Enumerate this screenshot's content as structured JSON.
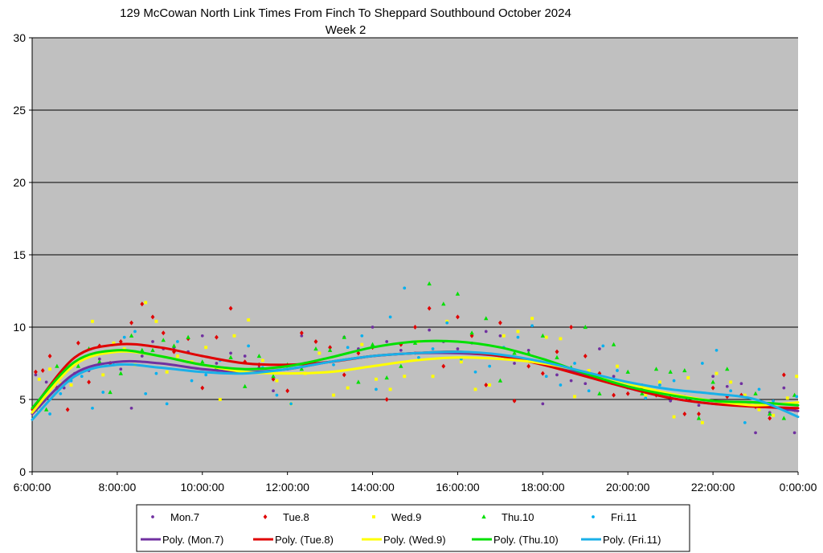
{
  "chart_data": {
    "type": "scatter",
    "title": "129 McCowan North Link Times From Finch To Sheppard Southbound October 2024",
    "subtitle": "Week 2",
    "xlabel": "",
    "ylabel": "",
    "x_range": [
      "6:00:00",
      "0:00:00"
    ],
    "ylim": [
      0,
      30
    ],
    "y_ticks": [
      "0",
      "5",
      "10",
      "15",
      "20",
      "25",
      "30"
    ],
    "x_ticks": [
      "6:00:00",
      "8:00:00",
      "10:00:00",
      "12:00:00",
      "14:00:00",
      "16:00:00",
      "18:00:00",
      "20:00:00",
      "22:00:00",
      "0:00:00"
    ],
    "grid": "horizontal",
    "plot_background": "#c0c0c0",
    "legend_position": "bottom",
    "series": [
      {
        "name": "Mon.7",
        "color": "#7030a0",
        "marker": "circle",
        "x": [
          "6:05",
          "6:20",
          "6:30",
          "6:45",
          "7:00",
          "7:10",
          "7:20",
          "7:35",
          "7:50",
          "8:05",
          "8:20",
          "8:35",
          "8:50",
          "9:05",
          "9:20",
          "9:40",
          "10:00",
          "10:20",
          "10:40",
          "11:00",
          "11:20",
          "11:40",
          "12:00",
          "12:20",
          "12:40",
          "13:00",
          "13:20",
          "13:40",
          "14:00",
          "14:20",
          "14:40",
          "15:00",
          "15:20",
          "15:40",
          "16:00",
          "16:20",
          "16:40",
          "17:00",
          "17:20",
          "17:40",
          "18:00",
          "18:20",
          "18:40",
          "19:00",
          "19:20",
          "19:40",
          "20:00",
          "20:20",
          "20:40",
          "21:00",
          "21:20",
          "21:40",
          "22:00",
          "22:20",
          "22:40",
          "23:00",
          "23:20",
          "23:40",
          "23:55"
        ],
        "y": [
          6.7,
          6.2,
          6.0,
          5.8,
          6.8,
          6.9,
          7.0,
          7.8,
          7.5,
          7.1,
          4.4,
          8.0,
          9.0,
          8.5,
          8.6,
          8.3,
          9.4,
          7.5,
          8.2,
          8.0,
          7.2,
          5.6,
          7.1,
          9.4,
          9.0,
          8.6,
          9.3,
          8.5,
          10.0,
          9.0,
          8.4,
          8.2,
          9.8,
          9.0,
          8.5,
          8.9,
          9.7,
          9.4,
          7.5,
          8.4,
          4.7,
          6.7,
          6.3,
          6.1,
          8.5,
          6.6,
          5.8,
          6.0,
          5.6,
          4.9,
          5.2,
          4.6,
          6.6,
          5.9,
          6.1,
          2.7,
          4.1,
          5.8,
          2.7
        ]
      },
      {
        "name": "Tue.8",
        "color": "#e00000",
        "marker": "diamond",
        "x": [
          "6:05",
          "6:15",
          "6:25",
          "6:35",
          "6:50",
          "7:05",
          "7:20",
          "7:35",
          "7:50",
          "8:05",
          "8:20",
          "8:35",
          "8:50",
          "9:05",
          "9:20",
          "9:40",
          "10:00",
          "10:20",
          "10:40",
          "11:00",
          "11:20",
          "11:40",
          "12:00",
          "12:20",
          "12:40",
          "13:00",
          "13:20",
          "13:40",
          "14:00",
          "14:20",
          "14:40",
          "15:00",
          "15:20",
          "15:40",
          "16:00",
          "16:20",
          "16:40",
          "17:00",
          "17:20",
          "17:40",
          "18:00",
          "18:20",
          "18:40",
          "19:00",
          "19:20",
          "19:40",
          "20:00",
          "20:20",
          "20:40",
          "21:00",
          "21:20",
          "21:40",
          "22:00",
          "22:20",
          "22:40",
          "23:00",
          "23:20",
          "23:40",
          "23:55"
        ],
        "y": [
          6.9,
          7.0,
          8.0,
          5.8,
          4.3,
          8.9,
          6.2,
          8.7,
          7.5,
          9.0,
          10.3,
          11.6,
          10.7,
          9.6,
          8.3,
          9.2,
          5.8,
          9.3,
          11.3,
          7.6,
          7.4,
          6.4,
          5.6,
          9.6,
          9.0,
          8.6,
          6.7,
          8.2,
          8.6,
          5.0,
          8.8,
          10.0,
          11.3,
          7.3,
          10.7,
          9.4,
          6.0,
          10.3,
          4.9,
          7.3,
          6.8,
          8.3,
          10.0,
          8.0,
          6.8,
          5.3,
          5.4,
          5.8,
          5.3,
          5.3,
          4.0,
          4.0,
          5.8,
          5.2,
          5.3,
          4.5,
          3.7,
          6.7,
          4.3
        ]
      },
      {
        "name": "Wed.9",
        "color": "#ffff00",
        "marker": "square",
        "x": [
          "6:10",
          "6:25",
          "6:40",
          "6:55",
          "7:10",
          "7:25",
          "7:40",
          "7:55",
          "8:10",
          "8:25",
          "8:40",
          "8:55",
          "9:10",
          "9:25",
          "9:45",
          "10:05",
          "10:25",
          "10:45",
          "11:05",
          "11:25",
          "11:45",
          "12:05",
          "12:25",
          "12:45",
          "13:05",
          "13:25",
          "13:45",
          "14:05",
          "14:25",
          "14:45",
          "15:05",
          "15:25",
          "15:45",
          "16:05",
          "16:25",
          "16:45",
          "17:05",
          "17:25",
          "17:45",
          "18:05",
          "18:25",
          "18:45",
          "19:05",
          "19:25",
          "19:45",
          "20:05",
          "20:25",
          "20:45",
          "21:05",
          "21:25",
          "21:45",
          "22:05",
          "22:25",
          "22:45",
          "23:05",
          "23:25",
          "23:45",
          "23:58"
        ],
        "y": [
          6.4,
          7.1,
          6.1,
          6.0,
          7.0,
          10.4,
          6.7,
          8.9,
          8.5,
          7.4,
          11.7,
          10.4,
          6.9,
          8.0,
          7.6,
          8.6,
          5.0,
          9.4,
          10.5,
          7.7,
          6.3,
          4.7,
          6.8,
          8.2,
          5.3,
          5.8,
          8.8,
          6.4,
          5.7,
          6.6,
          9.0,
          6.6,
          10.4,
          7.6,
          5.7,
          6.0,
          9.4,
          9.7,
          10.6,
          9.3,
          9.2,
          5.2,
          7.0,
          6.4,
          7.3,
          5.8,
          5.3,
          6.2,
          3.8,
          6.5,
          3.4,
          6.8,
          6.2,
          5.3,
          4.3,
          3.9,
          5.1,
          6.6
        ]
      },
      {
        "name": "Thu.10",
        "color": "#00e000",
        "marker": "triangle",
        "x": [
          "6:05",
          "6:20",
          "6:35",
          "6:50",
          "7:05",
          "7:20",
          "7:35",
          "7:50",
          "8:05",
          "8:20",
          "8:35",
          "8:50",
          "9:05",
          "9:20",
          "9:40",
          "10:00",
          "10:20",
          "10:40",
          "11:00",
          "11:20",
          "11:40",
          "12:00",
          "12:20",
          "12:40",
          "13:00",
          "13:20",
          "13:40",
          "14:00",
          "14:20",
          "14:40",
          "15:00",
          "15:20",
          "15:40",
          "16:00",
          "16:20",
          "16:40",
          "17:00",
          "17:20",
          "17:40",
          "18:00",
          "18:20",
          "18:40",
          "19:00",
          "19:20",
          "19:40",
          "20:00",
          "20:20",
          "20:40",
          "21:00",
          "21:20",
          "21:40",
          "22:00",
          "22:20",
          "22:40",
          "23:00",
          "23:20",
          "23:40",
          "23:55"
        ],
        "y": [
          4.3,
          4.3,
          7.3,
          6.3,
          7.3,
          8.5,
          7.6,
          5.5,
          6.8,
          9.4,
          8.4,
          8.4,
          9.1,
          8.7,
          9.3,
          7.6,
          7.2,
          7.9,
          5.9,
          8.0,
          6.6,
          7.4,
          7.1,
          8.5,
          8.4,
          9.3,
          6.2,
          8.8,
          6.5,
          7.3,
          8.9,
          13.0,
          11.6,
          12.3,
          9.6,
          10.6,
          6.3,
          8.2,
          8.2,
          9.4,
          7.9,
          7.2,
          10.0,
          5.4,
          8.8,
          6.9,
          5.4,
          7.1,
          6.9,
          7.0,
          3.7,
          6.2,
          7.1,
          4.6,
          5.4,
          4.0,
          3.7,
          5.3
        ]
      },
      {
        "name": "Fri.11",
        "color": "#00b0f0",
        "marker": "circle",
        "x": [
          "6:10",
          "6:25",
          "6:40",
          "6:55",
          "7:10",
          "7:25",
          "7:40",
          "7:55",
          "8:10",
          "8:25",
          "8:40",
          "8:55",
          "9:10",
          "9:25",
          "9:45",
          "10:05",
          "10:25",
          "10:45",
          "11:05",
          "11:25",
          "11:45",
          "12:05",
          "12:25",
          "12:45",
          "13:05",
          "13:25",
          "13:45",
          "14:05",
          "14:25",
          "14:45",
          "15:05",
          "15:25",
          "15:45",
          "16:05",
          "16:25",
          "16:45",
          "17:05",
          "17:25",
          "17:45",
          "18:05",
          "18:25",
          "18:45",
          "19:05",
          "19:25",
          "19:45",
          "20:05",
          "20:25",
          "20:45",
          "21:05",
          "21:25",
          "21:45",
          "22:05",
          "22:25",
          "22:45",
          "23:05",
          "23:25",
          "23:45",
          "23:58"
        ],
        "y": [
          4.5,
          4.0,
          5.4,
          6.3,
          6.6,
          4.4,
          5.5,
          7.4,
          9.3,
          9.7,
          5.4,
          6.8,
          4.7,
          9.0,
          6.3,
          6.7,
          7.7,
          6.9,
          8.7,
          7.2,
          5.3,
          4.7,
          7.5,
          7.5,
          7.4,
          8.6,
          9.4,
          5.7,
          10.7,
          12.7,
          7.9,
          8.5,
          10.3,
          7.8,
          6.9,
          7.3,
          8.6,
          9.3,
          10.1,
          6.6,
          6.0,
          7.5,
          5.6,
          8.7,
          7.0,
          5.8,
          5.1,
          6.0,
          6.3,
          5.1,
          7.5,
          8.4,
          5.6,
          3.4,
          5.7,
          4.9,
          4.3,
          5.2
        ]
      }
    ],
    "trendlines": [
      {
        "name": "Poly. (Mon.7)",
        "color": "#7030a0",
        "x": [
          "6:00",
          "7:00",
          "8:00",
          "9:00",
          "10:00",
          "11:00",
          "12:00",
          "13:00",
          "14:00",
          "15:00",
          "16:00",
          "17:00",
          "18:00",
          "19:00",
          "20:00",
          "21:00",
          "22:00",
          "23:00",
          "0:00"
        ],
        "y": [
          4.0,
          6.8,
          7.6,
          7.5,
          7.1,
          6.9,
          7.1,
          7.6,
          8.0,
          8.2,
          8.2,
          8.0,
          7.5,
          6.7,
          5.8,
          5.1,
          4.7,
          4.6,
          4.2
        ]
      },
      {
        "name": "Poly. (Tue.8)",
        "color": "#e00000",
        "x": [
          "6:00",
          "7:00",
          "8:00",
          "9:00",
          "10:00",
          "11:00",
          "12:00",
          "13:00",
          "14:00",
          "15:00",
          "16:00",
          "17:00",
          "18:00",
          "19:00",
          "20:00",
          "21:00",
          "22:00",
          "23:00",
          "0:00"
        ],
        "y": [
          4.3,
          7.9,
          8.8,
          8.6,
          8.0,
          7.5,
          7.4,
          7.6,
          8.0,
          8.2,
          8.3,
          8.0,
          7.4,
          6.6,
          5.8,
          5.1,
          4.7,
          4.5,
          4.4
        ]
      },
      {
        "name": "Poly. (Wed.9)",
        "color": "#ffff00",
        "x": [
          "6:00",
          "7:00",
          "8:00",
          "9:00",
          "10:00",
          "11:00",
          "12:00",
          "13:00",
          "14:00",
          "15:00",
          "16:00",
          "17:00",
          "18:00",
          "19:00",
          "20:00",
          "21:00",
          "22:00",
          "23:00",
          "0:00"
        ],
        "y": [
          4.1,
          7.4,
          8.3,
          8.0,
          7.4,
          6.9,
          6.8,
          6.9,
          7.3,
          7.7,
          7.9,
          7.8,
          7.5,
          6.9,
          6.1,
          5.4,
          4.9,
          4.6,
          4.8
        ]
      },
      {
        "name": "Poly. (Thu.10)",
        "color": "#00e000",
        "x": [
          "6:00",
          "7:00",
          "8:00",
          "9:00",
          "10:00",
          "11:00",
          "12:00",
          "13:00",
          "14:00",
          "15:00",
          "16:00",
          "17:00",
          "18:00",
          "19:00",
          "20:00",
          "21:00",
          "22:00",
          "23:00",
          "0:00"
        ],
        "y": [
          4.4,
          7.6,
          8.4,
          8.0,
          7.4,
          7.1,
          7.3,
          7.9,
          8.6,
          9.0,
          9.0,
          8.6,
          7.8,
          6.8,
          5.9,
          5.3,
          4.9,
          4.8,
          4.6
        ]
      },
      {
        "name": "Poly. (Fri.11)",
        "color": "#1ab0e8",
        "x": [
          "6:00",
          "7:00",
          "8:00",
          "9:00",
          "10:00",
          "11:00",
          "12:00",
          "13:00",
          "14:00",
          "15:00",
          "16:00",
          "17:00",
          "18:00",
          "19:00",
          "20:00",
          "21:00",
          "22:00",
          "23:00",
          "0:00"
        ],
        "y": [
          3.6,
          6.6,
          7.4,
          7.2,
          6.9,
          6.8,
          7.1,
          7.6,
          8.0,
          8.2,
          8.3,
          8.1,
          7.6,
          6.9,
          6.2,
          5.7,
          5.4,
          5.0,
          3.8
        ]
      }
    ]
  }
}
